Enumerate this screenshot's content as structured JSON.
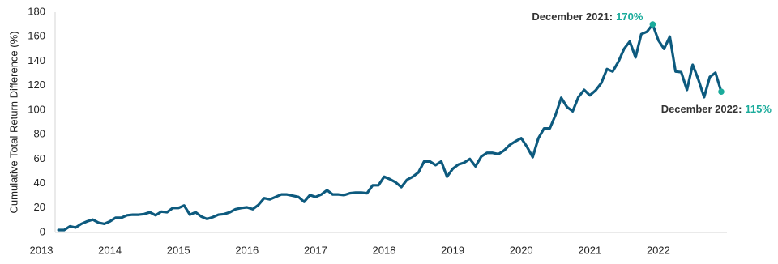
{
  "chart_data": {
    "type": "line",
    "y_label": "Cumulative Total Return Difference (%)",
    "x": [
      2013.25,
      2013.333,
      2013.417,
      2013.5,
      2013.583,
      2013.667,
      2013.75,
      2013.833,
      2013.917,
      2014,
      2014.083,
      2014.167,
      2014.25,
      2014.333,
      2014.417,
      2014.5,
      2014.583,
      2014.667,
      2014.75,
      2014.833,
      2014.917,
      2015,
      2015.083,
      2015.167,
      2015.25,
      2015.333,
      2015.417,
      2015.5,
      2015.583,
      2015.667,
      2015.75,
      2015.833,
      2015.917,
      2016,
      2016.083,
      2016.167,
      2016.25,
      2016.333,
      2016.417,
      2016.5,
      2016.583,
      2016.667,
      2016.75,
      2016.833,
      2016.917,
      2017,
      2017.083,
      2017.167,
      2017.25,
      2017.333,
      2017.417,
      2017.5,
      2017.583,
      2017.667,
      2017.75,
      2017.833,
      2017.917,
      2018,
      2018.083,
      2018.167,
      2018.25,
      2018.333,
      2018.417,
      2018.5,
      2018.583,
      2018.667,
      2018.75,
      2018.833,
      2018.917,
      2019,
      2019.083,
      2019.167,
      2019.25,
      2019.333,
      2019.417,
      2019.5,
      2019.583,
      2019.667,
      2019.75,
      2019.833,
      2019.917,
      2020,
      2020.083,
      2020.167,
      2020.25,
      2020.333,
      2020.417,
      2020.5,
      2020.583,
      2020.667,
      2020.75,
      2020.833,
      2020.917,
      2021,
      2021.083,
      2021.167,
      2021.25,
      2021.333,
      2021.417,
      2021.5,
      2021.583,
      2021.667,
      2021.75,
      2021.833,
      2021.917,
      2022,
      2022.083,
      2022.167,
      2022.25,
      2022.333,
      2022.417,
      2022.5,
      2022.583,
      2022.667,
      2022.75,
      2022.833,
      2022.917
    ],
    "series": [
      {
        "color": "#0d5a7e",
        "values": [
          2,
          2,
          5,
          4,
          7,
          9,
          10.5,
          8,
          7,
          9,
          12,
          12,
          14,
          14.5,
          14.5,
          15,
          16.5,
          14,
          17,
          16.5,
          20,
          20,
          22,
          14.5,
          16.5,
          13,
          11,
          12.5,
          14.5,
          15,
          16.5,
          19,
          20,
          20.5,
          19,
          22.5,
          28,
          27,
          29,
          31,
          31,
          30,
          29,
          25,
          30.5,
          29,
          31,
          34.5,
          31,
          31,
          30.5,
          32,
          32.5,
          32.5,
          32,
          38.5,
          38.5,
          45.5,
          43.5,
          41,
          37,
          43,
          45.5,
          49,
          58,
          58,
          55,
          58,
          45.5,
          52,
          55.5,
          57,
          60,
          54,
          62,
          65,
          65,
          64,
          67,
          71.5,
          74.5,
          77,
          70,
          61.5,
          77,
          85,
          85,
          96,
          110,
          102.5,
          99,
          110.5,
          116.5,
          112,
          116,
          122,
          133.5,
          131.5,
          139.5,
          150,
          156,
          143,
          162,
          164,
          170,
          157,
          150,
          160,
          131.5,
          131,
          116.5,
          137,
          125,
          110.5,
          127,
          130.5,
          115
        ]
      }
    ],
    "xlim": [
      2013,
      2023
    ],
    "xticks": [
      2013,
      2014,
      2015,
      2016,
      2017,
      2018,
      2019,
      2020,
      2021,
      2022
    ],
    "ylim": [
      0,
      180
    ],
    "yticks": [
      0,
      20,
      40,
      60,
      80,
      100,
      120,
      140,
      160,
      180
    ],
    "grid": false,
    "annotation_color": "#1aab9b",
    "annotations": [
      {
        "text": "December 2021:",
        "value": 170,
        "value_label": "170%"
      },
      {
        "text": "December 2022:",
        "value": 115,
        "value_label": "115%"
      }
    ]
  }
}
